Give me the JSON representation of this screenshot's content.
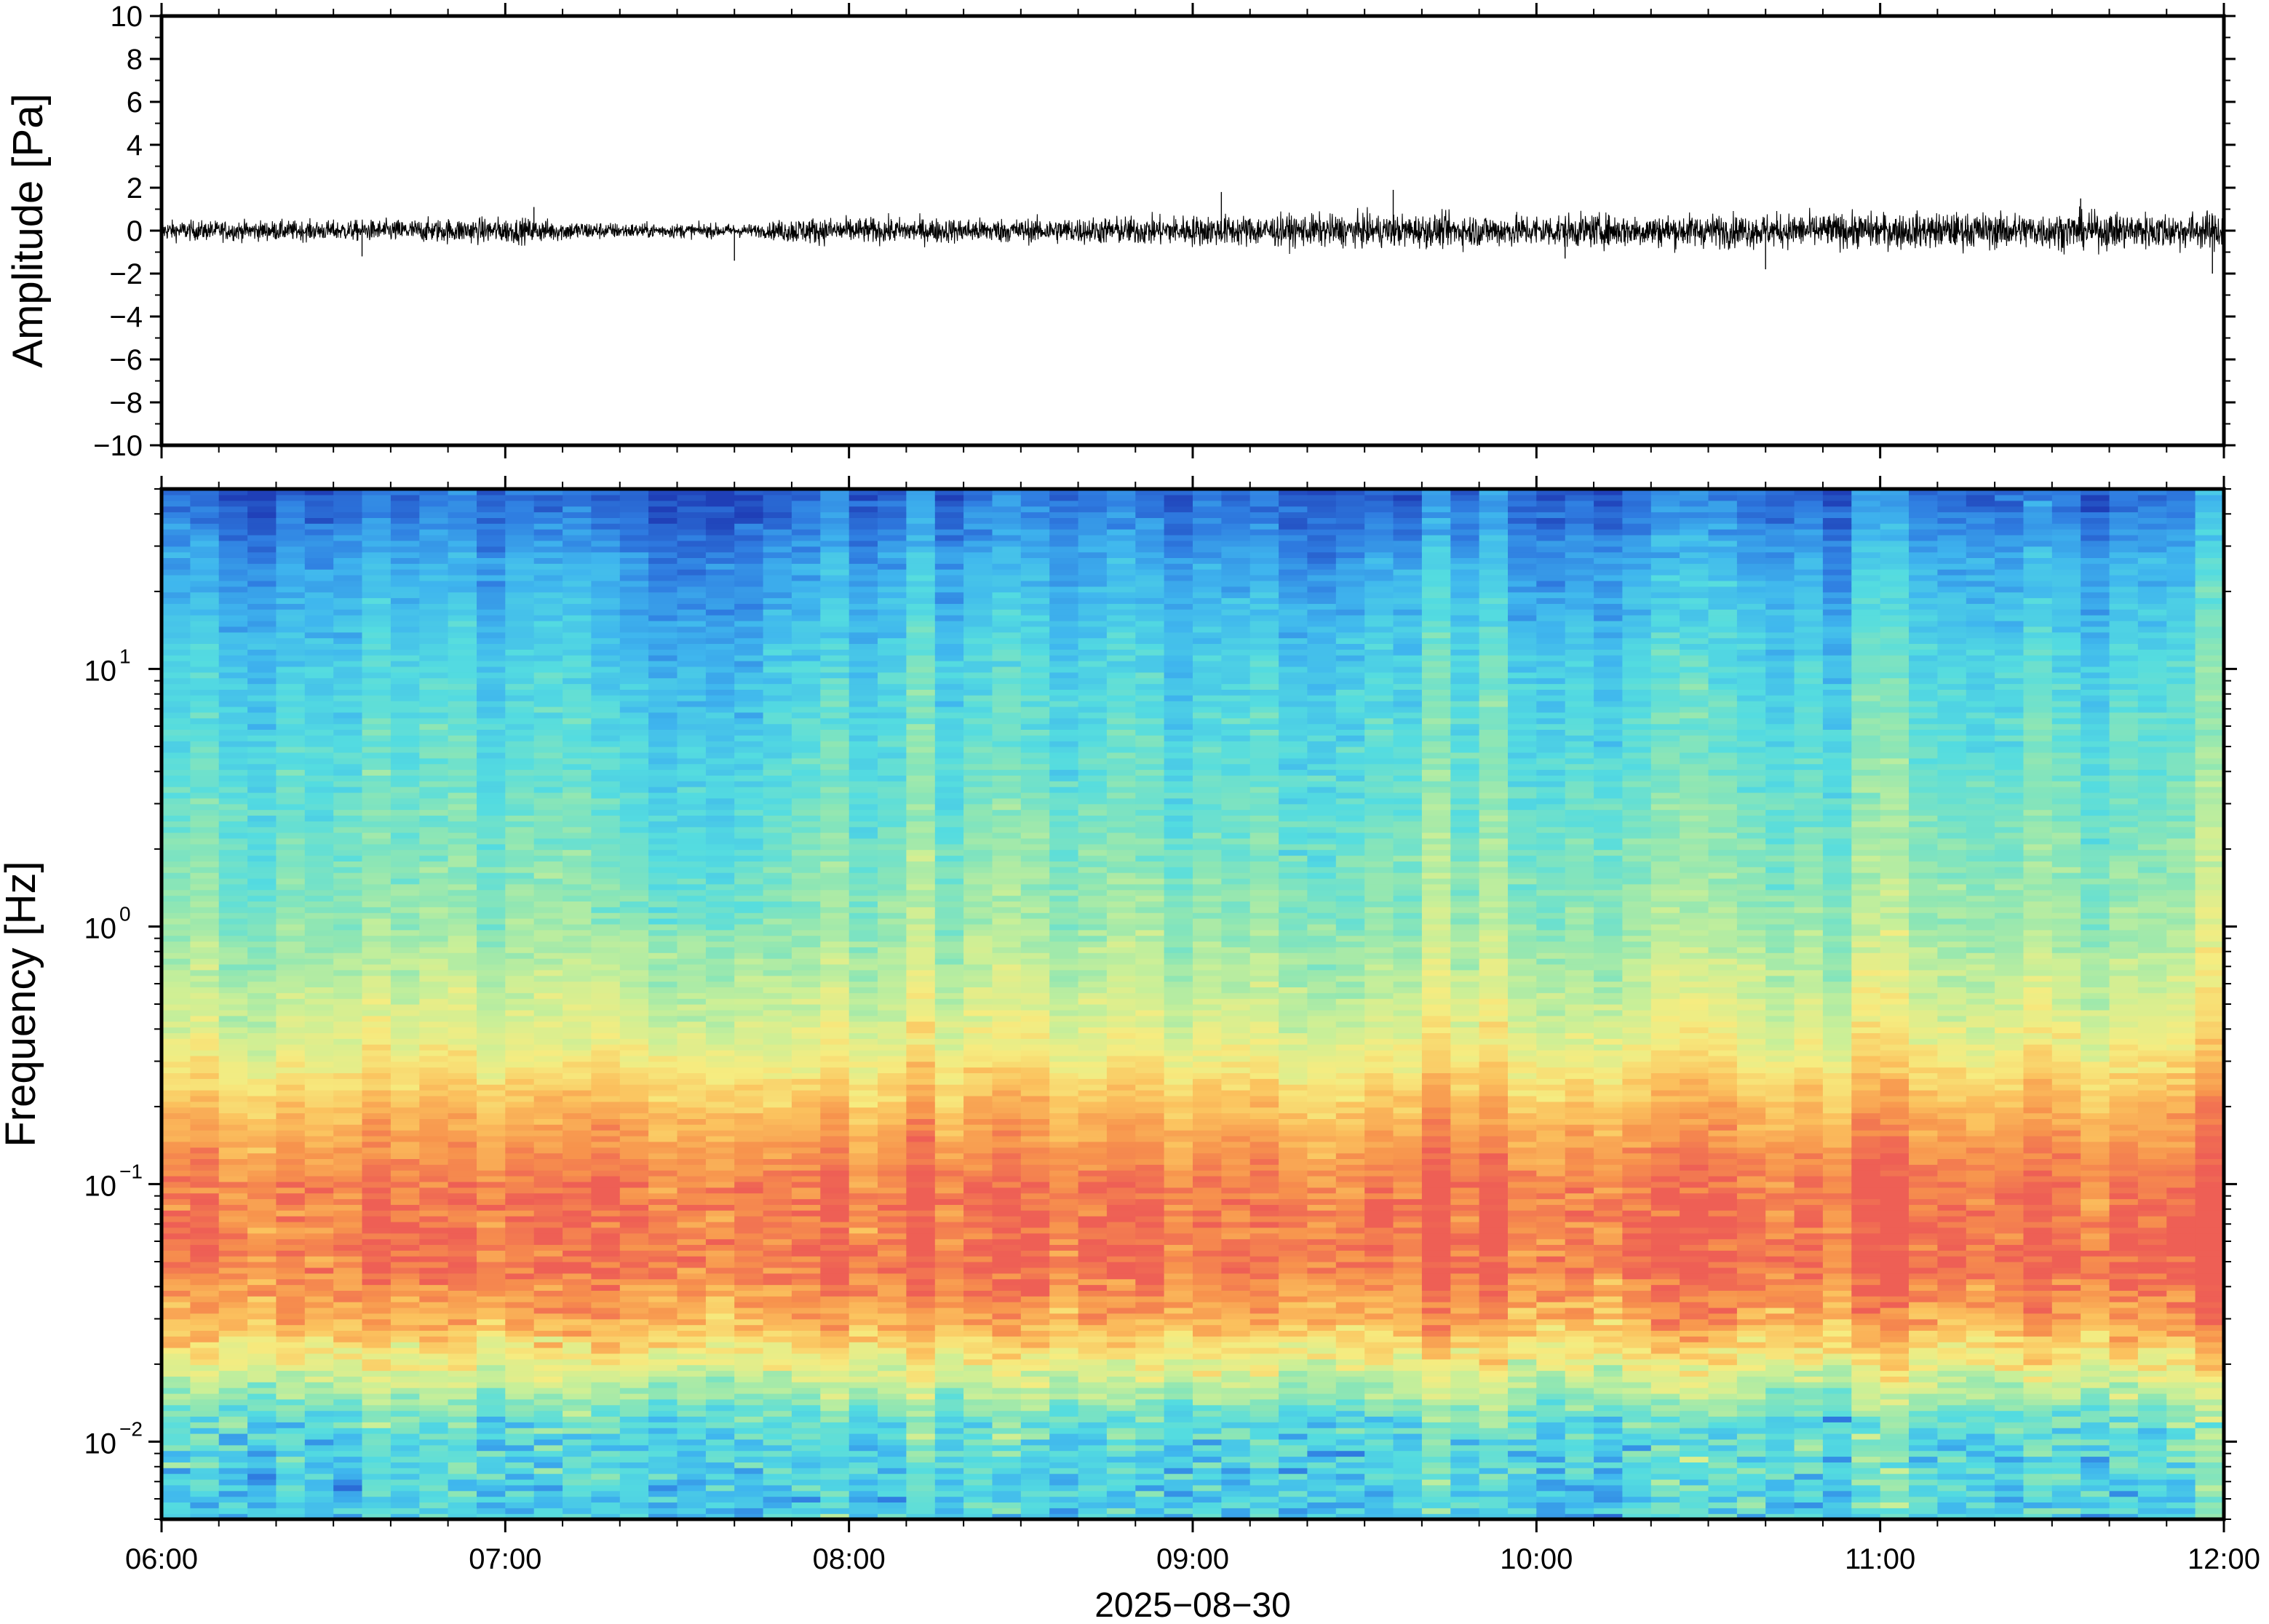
{
  "chart_data": [
    {
      "type": "line",
      "name": "waveform-panel",
      "ylabel": "Amplitude [Pa]",
      "ylim": [
        -10,
        10
      ],
      "yticks": [
        -10,
        -8,
        -6,
        -4,
        -2,
        0,
        2,
        4,
        6,
        8,
        10
      ],
      "ytick_labels": [
        "−10",
        "−8",
        "−6",
        "−4",
        "−2",
        "0",
        "2",
        "4",
        "6",
        "8",
        "10"
      ],
      "x_range": [
        "06:00",
        "12:00"
      ],
      "noise_envelope": [
        {
          "t": "06:00",
          "amp": 0.45
        },
        {
          "t": "06:30",
          "amp": 0.45
        },
        {
          "t": "07:00",
          "amp": 0.6
        },
        {
          "t": "07:20",
          "amp": 0.35
        },
        {
          "t": "07:45",
          "amp": 0.3
        },
        {
          "t": "07:50",
          "amp": 0.6
        },
        {
          "t": "08:30",
          "amp": 0.55
        },
        {
          "t": "09:00",
          "amp": 0.7
        },
        {
          "t": "09:40",
          "amp": 0.75
        },
        {
          "t": "10:30",
          "amp": 0.75
        },
        {
          "t": "11:00",
          "amp": 0.8
        },
        {
          "t": "12:00",
          "amp": 0.85
        }
      ],
      "spikes": [
        {
          "t": "06:35",
          "value": -1.2
        },
        {
          "t": "07:05",
          "value": 1.1
        },
        {
          "t": "07:40",
          "value": -1.4
        },
        {
          "t": "09:05",
          "value": 1.8
        },
        {
          "t": "09:35",
          "value": 1.9
        },
        {
          "t": "10:05",
          "value": -1.3
        },
        {
          "t": "10:40",
          "value": -1.8
        },
        {
          "t": "11:35",
          "value": 1.5
        },
        {
          "t": "11:58",
          "value": -2.0
        }
      ],
      "grid": false
    },
    {
      "type": "heatmap",
      "name": "spectrogram-panel",
      "ylabel": "Frequency [Hz]",
      "yscale": "log",
      "ylim": [
        0.005,
        50
      ],
      "yticks": [
        0.01,
        0.1,
        1,
        10
      ],
      "ytick_base": "10",
      "ytick_exponents": [
        "−2",
        "−1",
        "0",
        "1"
      ],
      "xlabel": "2025−08−30",
      "xticks": [
        "06:00",
        "07:00",
        "08:00",
        "09:00",
        "10:00",
        "11:00",
        "12:00"
      ],
      "colormap": "spectral",
      "colormap_stops": [
        "#1f3fb7",
        "#2f7de1",
        "#3fb6ee",
        "#54dce0",
        "#8ee6b4",
        "#c9ef98",
        "#f6ec80",
        "#fbc25e",
        "#f7934d",
        "#ee5f55"
      ],
      "colormap_meaning": "low power = blue, high power = red",
      "spectral_profile": [
        {
          "freq": 0.006,
          "level": 0.28
        },
        {
          "freq": 0.012,
          "level": 0.35
        },
        {
          "freq": 0.02,
          "level": 0.62
        },
        {
          "freq": 0.03,
          "level": 0.82
        },
        {
          "freq": 0.05,
          "level": 0.95
        },
        {
          "freq": 0.1,
          "level": 0.93
        },
        {
          "freq": 0.2,
          "level": 0.78
        },
        {
          "freq": 0.35,
          "level": 0.62
        },
        {
          "freq": 1,
          "level": 0.46
        },
        {
          "freq": 3,
          "level": 0.38
        },
        {
          "freq": 10,
          "level": 0.3
        },
        {
          "freq": 25,
          "level": 0.2
        },
        {
          "freq": 45,
          "level": 0.08
        }
      ],
      "quiet_intervals": [
        {
          "start": "07:15",
          "end": "07:45",
          "note_level_shift": -0.08
        }
      ],
      "grid": false
    }
  ]
}
